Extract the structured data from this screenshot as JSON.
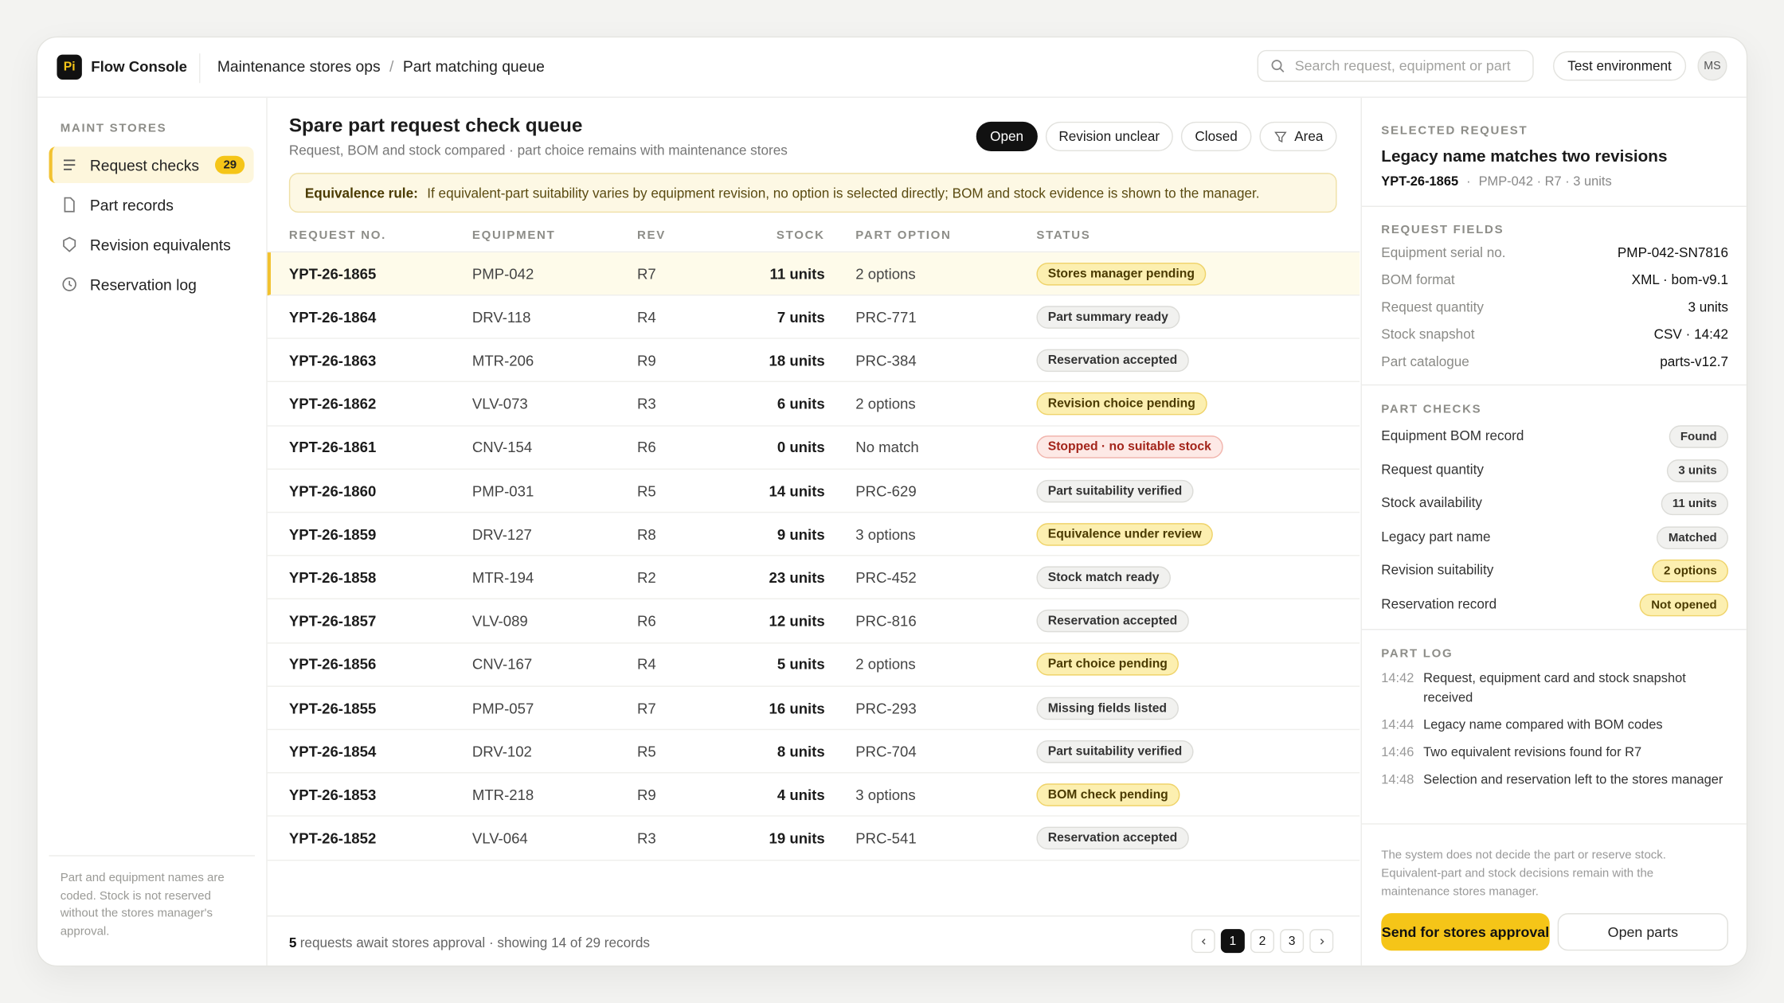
{
  "app": {
    "logo": "Pi",
    "name": "Flow Console",
    "breadcrumb": [
      "Maintenance stores ops",
      "Part matching queue"
    ],
    "breadcrumb_separator": "/",
    "search_placeholder": "Search request, equipment or part",
    "environment": "Test environment",
    "user": "MS"
  },
  "sidebar": {
    "section": "MAINT STORES",
    "items": [
      {
        "label": "Request checks",
        "badge": "29",
        "active": true
      },
      {
        "label": "Part records"
      },
      {
        "label": "Revision equivalents"
      },
      {
        "label": "Reservation log"
      }
    ],
    "note": "Part and equipment names are coded. Stock is not reserved without the stores manager's approval."
  },
  "queue": {
    "title": "Spare part request check queue",
    "subtitle": "Request, BOM and stock compared · part choice remains with maintenance stores",
    "filters": [
      {
        "label": "Open",
        "active": true
      },
      {
        "label": "Revision unclear"
      },
      {
        "label": "Closed"
      },
      {
        "label": "Area",
        "icon": "filter"
      }
    ],
    "rule_label": "Equivalence rule:",
    "rule_text": "If equivalent-part suitability varies by equipment revision, no option is selected directly; BOM and stock evidence is shown to the manager.",
    "columns": [
      "REQUEST NO.",
      "EQUIPMENT",
      "REV",
      "STOCK",
      "PART OPTION",
      "STATUS"
    ],
    "selected_row": 0,
    "rows": [
      {
        "id": "YPT-26-1865",
        "equipment": "PMP-042",
        "rev": "R7",
        "stock": "11 units",
        "part": "2 options",
        "status": "Stores manager pending",
        "tone": "warn"
      },
      {
        "id": "YPT-26-1864",
        "equipment": "DRV-118",
        "rev": "R4",
        "stock": "7 units",
        "part": "PRC-771",
        "status": "Part summary ready",
        "tone": "neutral"
      },
      {
        "id": "YPT-26-1863",
        "equipment": "MTR-206",
        "rev": "R9",
        "stock": "18 units",
        "part": "PRC-384",
        "status": "Reservation accepted",
        "tone": "neutral"
      },
      {
        "id": "YPT-26-1862",
        "equipment": "VLV-073",
        "rev": "R3",
        "stock": "6 units",
        "part": "2 options",
        "status": "Revision choice pending",
        "tone": "warn"
      },
      {
        "id": "YPT-26-1861",
        "equipment": "CNV-154",
        "rev": "R6",
        "stock": "0 units",
        "part": "No match",
        "status": "Stopped · no suitable stock",
        "tone": "error"
      },
      {
        "id": "YPT-26-1860",
        "equipment": "PMP-031",
        "rev": "R5",
        "stock": "14 units",
        "part": "PRC-629",
        "status": "Part suitability verified",
        "tone": "neutral"
      },
      {
        "id": "YPT-26-1859",
        "equipment": "DRV-127",
        "rev": "R8",
        "stock": "9 units",
        "part": "3 options",
        "status": "Equivalence under review",
        "tone": "warn"
      },
      {
        "id": "YPT-26-1858",
        "equipment": "MTR-194",
        "rev": "R2",
        "stock": "23 units",
        "part": "PRC-452",
        "status": "Stock match ready",
        "tone": "neutral"
      },
      {
        "id": "YPT-26-1857",
        "equipment": "VLV-089",
        "rev": "R6",
        "stock": "12 units",
        "part": "PRC-816",
        "status": "Reservation accepted",
        "tone": "neutral"
      },
      {
        "id": "YPT-26-1856",
        "equipment": "CNV-167",
        "rev": "R4",
        "stock": "5 units",
        "part": "2 options",
        "status": "Part choice pending",
        "tone": "warn"
      },
      {
        "id": "YPT-26-1855",
        "equipment": "PMP-057",
        "rev": "R7",
        "stock": "16 units",
        "part": "PRC-293",
        "status": "Missing fields listed",
        "tone": "neutral"
      },
      {
        "id": "YPT-26-1854",
        "equipment": "DRV-102",
        "rev": "R5",
        "stock": "8 units",
        "part": "PRC-704",
        "status": "Part suitability verified",
        "tone": "neutral"
      },
      {
        "id": "YPT-26-1853",
        "equipment": "MTR-218",
        "rev": "R9",
        "stock": "4 units",
        "part": "3 options",
        "status": "BOM check pending",
        "tone": "warn"
      },
      {
        "id": "YPT-26-1852",
        "equipment": "VLV-064",
        "rev": "R3",
        "stock": "19 units",
        "part": "PRC-541",
        "status": "Reservation accepted",
        "tone": "neutral"
      }
    ],
    "footer_count": 5,
    "footer_text": "requests await stores approval · showing 14 of 29 records",
    "pages": [
      "1",
      "2",
      "3"
    ],
    "current_page": 0
  },
  "detail": {
    "section": "SELECTED REQUEST",
    "title": "Legacy name matches two revisions",
    "id": "YPT-26-1865",
    "separator": "·",
    "meta": "PMP-042 · R7 · 3 units",
    "fields_title": "REQUEST FIELDS",
    "fields": [
      {
        "label": "Equipment serial no.",
        "value": "PMP-042-SN7816"
      },
      {
        "label": "BOM format",
        "value": "XML · bom-v9.1"
      },
      {
        "label": "Request quantity",
        "value": "3 units"
      },
      {
        "label": "Stock snapshot",
        "value": "CSV · 14:42"
      },
      {
        "label": "Part catalogue",
        "value": "parts-v12.7"
      }
    ],
    "checks_title": "PART CHECKS",
    "checks": [
      {
        "label": "Equipment BOM record",
        "value": "Found",
        "tone": "neutral"
      },
      {
        "label": "Request quantity",
        "value": "3 units",
        "tone": "neutral"
      },
      {
        "label": "Stock availability",
        "value": "11 units",
        "tone": "neutral"
      },
      {
        "label": "Legacy part name",
        "value": "Matched",
        "tone": "neutral"
      },
      {
        "label": "Revision suitability",
        "value": "2 options",
        "tone": "warn"
      },
      {
        "label": "Reservation record",
        "value": "Not opened",
        "tone": "warn"
      }
    ],
    "log_title": "PART LOG",
    "log": [
      {
        "time": "14:42",
        "text": "Request, equipment card and stock snapshot received"
      },
      {
        "time": "14:44",
        "text": "Legacy name compared with BOM codes"
      },
      {
        "time": "14:46",
        "text": "Two equivalent revisions found for R7"
      },
      {
        "time": "14:48",
        "text": "Selection and reservation left to the stores manager"
      }
    ],
    "note": "The system does not decide the part or reserve stock. Equivalent-part and stock decisions remain with the maintenance stores manager.",
    "primary_action": "Send for stores approval",
    "secondary_action": "Open parts"
  }
}
